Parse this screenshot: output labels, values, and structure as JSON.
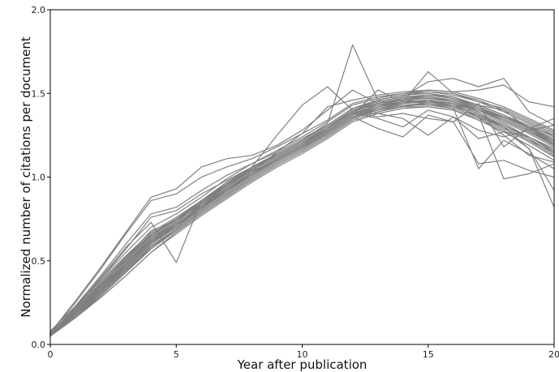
{
  "chart_data": {
    "type": "line",
    "title": "",
    "xlabel": "Year after publication",
    "ylabel": "Normalized number of citations per document",
    "xlim": [
      0,
      20
    ],
    "ylim": [
      0.0,
      2.0
    ],
    "x_ticks": [
      0,
      5,
      10,
      15,
      20
    ],
    "x_tick_labels": [
      "0",
      "5",
      "10",
      "15",
      "20"
    ],
    "y_ticks": [
      0.0,
      0.5,
      1.0,
      1.5,
      2.0
    ],
    "y_tick_labels": [
      "0.0",
      "0.5",
      "1.0",
      "1.5",
      "2.0"
    ],
    "grid": false,
    "legend": "none",
    "line_color": "#808080",
    "x": [
      0,
      1,
      2,
      3,
      4,
      5,
      6,
      7,
      8,
      9,
      10,
      11,
      12,
      13,
      14,
      15,
      16,
      17,
      18,
      19,
      20
    ],
    "series": [
      {
        "values": [
          0.06,
          0.19,
          0.33,
          0.47,
          0.62,
          0.72,
          0.82,
          0.93,
          1.03,
          1.11,
          1.19,
          1.28,
          1.38,
          1.43,
          1.46,
          1.47,
          1.45,
          1.4,
          1.33,
          1.26,
          1.18
        ]
      },
      {
        "values": [
          0.05,
          0.17,
          0.3,
          0.44,
          0.58,
          0.69,
          0.8,
          0.9,
          1.0,
          1.09,
          1.17,
          1.26,
          1.36,
          1.41,
          1.44,
          1.46,
          1.44,
          1.39,
          1.32,
          1.24,
          1.16
        ]
      },
      {
        "values": [
          0.07,
          0.21,
          0.36,
          0.5,
          0.66,
          0.75,
          0.85,
          0.96,
          1.05,
          1.13,
          1.21,
          1.3,
          1.4,
          1.45,
          1.48,
          1.49,
          1.47,
          1.42,
          1.36,
          1.29,
          1.21
        ]
      },
      {
        "values": [
          0.05,
          0.16,
          0.28,
          0.41,
          0.55,
          0.67,
          0.78,
          0.88,
          0.98,
          1.07,
          1.15,
          1.24,
          1.34,
          1.39,
          1.42,
          1.44,
          1.42,
          1.37,
          1.3,
          1.22,
          1.13
        ]
      },
      {
        "values": [
          0.08,
          0.23,
          0.39,
          0.55,
          0.7,
          0.78,
          0.88,
          0.99,
          1.08,
          1.16,
          1.24,
          1.33,
          1.43,
          1.47,
          1.5,
          1.51,
          1.49,
          1.45,
          1.39,
          1.32,
          1.25
        ]
      },
      {
        "values": [
          0.06,
          0.18,
          0.31,
          0.45,
          0.6,
          0.7,
          0.81,
          0.91,
          1.01,
          1.1,
          1.18,
          1.27,
          1.37,
          1.42,
          1.45,
          1.45,
          1.43,
          1.38,
          1.31,
          1.23,
          1.14
        ]
      },
      {
        "values": [
          0.05,
          0.2,
          0.35,
          0.52,
          0.68,
          0.74,
          0.83,
          0.94,
          1.04,
          1.12,
          1.2,
          1.29,
          1.39,
          1.44,
          1.46,
          1.48,
          1.46,
          1.41,
          1.35,
          1.28,
          1.2
        ]
      },
      {
        "values": [
          0.06,
          0.17,
          0.29,
          0.43,
          0.57,
          0.68,
          0.79,
          0.89,
          0.99,
          1.08,
          1.16,
          1.25,
          1.35,
          1.4,
          1.43,
          1.43,
          1.41,
          1.36,
          1.29,
          1.21,
          1.12
        ]
      },
      {
        "values": [
          0.07,
          0.22,
          0.38,
          0.53,
          0.67,
          0.76,
          0.86,
          0.97,
          1.06,
          1.14,
          1.22,
          1.31,
          1.41,
          1.46,
          1.49,
          1.5,
          1.48,
          1.43,
          1.37,
          1.3,
          1.22
        ]
      },
      {
        "values": [
          0.05,
          0.19,
          0.34,
          0.49,
          0.64,
          0.73,
          0.84,
          0.95,
          1.04,
          1.12,
          1.2,
          1.28,
          1.38,
          1.42,
          1.45,
          1.46,
          1.44,
          1.4,
          1.34,
          1.27,
          1.19
        ]
      },
      {
        "values": [
          0.06,
          0.18,
          0.32,
          0.46,
          0.61,
          0.71,
          0.83,
          0.92,
          1.02,
          1.1,
          1.18,
          1.27,
          1.37,
          1.41,
          1.43,
          1.44,
          1.41,
          1.36,
          1.3,
          1.22,
          1.15
        ]
      },
      {
        "values": [
          0.05,
          0.16,
          0.29,
          0.43,
          0.58,
          0.69,
          0.8,
          0.9,
          1.0,
          1.09,
          1.17,
          1.26,
          1.36,
          1.4,
          1.42,
          1.42,
          1.4,
          1.34,
          1.27,
          1.19,
          1.1
        ]
      },
      {
        "values": [
          0.07,
          0.2,
          0.35,
          0.51,
          0.65,
          0.74,
          0.85,
          0.95,
          1.05,
          1.13,
          1.21,
          1.3,
          1.4,
          1.44,
          1.47,
          1.48,
          1.45,
          1.4,
          1.34,
          1.27,
          1.2
        ]
      },
      {
        "values": [
          0.06,
          0.19,
          0.33,
          0.48,
          0.63,
          0.72,
          0.82,
          0.93,
          1.02,
          1.11,
          1.19,
          1.28,
          1.38,
          1.43,
          1.46,
          1.47,
          1.45,
          1.41,
          1.36,
          1.29,
          1.22
        ]
      },
      {
        "values": [
          0.05,
          0.17,
          0.31,
          0.46,
          0.61,
          0.71,
          0.81,
          0.92,
          1.01,
          1.1,
          1.18,
          1.27,
          1.37,
          1.42,
          1.45,
          1.45,
          1.42,
          1.37,
          1.31,
          1.24,
          1.17
        ]
      },
      {
        "values": [
          0.06,
          0.21,
          0.37,
          0.52,
          0.66,
          0.75,
          0.84,
          0.94,
          1.04,
          1.12,
          1.2,
          1.29,
          1.39,
          1.44,
          1.47,
          1.49,
          1.47,
          1.43,
          1.37,
          1.31,
          1.24
        ]
      },
      {
        "values": [
          0.06,
          0.23,
          0.41,
          0.6,
          0.78,
          0.82,
          0.92,
          1.01,
          1.08,
          1.15,
          1.23,
          1.31,
          1.41,
          1.46,
          1.49,
          1.51,
          1.5,
          1.46,
          1.4,
          1.33,
          1.26
        ]
      },
      {
        "values": [
          0.07,
          0.25,
          0.45,
          0.66,
          0.86,
          0.9,
          1.0,
          1.06,
          1.11,
          1.18,
          1.26,
          1.34,
          1.44,
          1.48,
          1.5,
          1.52,
          1.51,
          1.47,
          1.42,
          1.35,
          1.28
        ]
      },
      {
        "values": [
          0.05,
          0.21,
          0.39,
          0.57,
          0.76,
          0.8,
          0.9,
          0.98,
          1.06,
          1.13,
          1.21,
          1.29,
          1.39,
          1.44,
          1.47,
          1.49,
          1.47,
          1.43,
          1.37,
          1.3,
          1.23
        ]
      },
      {
        "values": [
          0.06,
          0.22,
          0.4,
          0.58,
          0.73,
          0.49,
          0.86,
          0.96,
          1.05,
          1.13,
          1.21,
          1.3,
          1.39,
          1.44,
          1.47,
          1.48,
          1.46,
          1.42,
          1.36,
          1.29,
          1.22
        ]
      },
      {
        "values": [
          0.07,
          0.26,
          0.46,
          0.67,
          0.88,
          0.93,
          1.06,
          1.11,
          1.13,
          1.19,
          1.28,
          1.4,
          1.52,
          1.44,
          1.46,
          1.45,
          1.43,
          1.4,
          1.36,
          1.3,
          1.25
        ]
      },
      {
        "values": [
          0.05,
          0.2,
          0.36,
          0.51,
          0.65,
          0.74,
          0.85,
          0.95,
          1.05,
          1.14,
          1.22,
          1.32,
          1.79,
          1.46,
          1.42,
          1.45,
          1.44,
          1.4,
          1.35,
          1.28,
          1.21
        ]
      },
      {
        "values": [
          0.06,
          0.19,
          0.34,
          0.48,
          0.63,
          0.73,
          0.84,
          0.95,
          1.06,
          1.25,
          1.43,
          1.54,
          1.4,
          1.43,
          1.45,
          1.46,
          1.44,
          1.4,
          1.34,
          1.27,
          1.2
        ]
      },
      {
        "values": [
          0.05,
          0.18,
          0.32,
          0.46,
          0.61,
          0.72,
          0.82,
          0.93,
          1.03,
          1.15,
          1.26,
          1.42,
          1.46,
          1.49,
          1.51,
          1.52,
          1.51,
          1.52,
          1.55,
          1.45,
          1.42
        ]
      },
      {
        "values": [
          0.06,
          0.19,
          0.33,
          0.47,
          0.62,
          0.72,
          0.82,
          0.92,
          1.02,
          1.1,
          1.18,
          1.27,
          1.37,
          1.52,
          1.45,
          1.63,
          1.5,
          1.45,
          1.41,
          1.34,
          1.27
        ]
      },
      {
        "values": [
          0.07,
          0.21,
          0.36,
          0.5,
          0.65,
          0.75,
          0.85,
          0.96,
          1.06,
          1.14,
          1.22,
          1.31,
          1.41,
          1.45,
          1.48,
          1.57,
          1.59,
          1.54,
          1.59,
          1.39,
          1.31
        ]
      },
      {
        "values": [
          0.05,
          0.17,
          0.3,
          0.44,
          0.59,
          0.69,
          0.8,
          0.9,
          1.0,
          1.09,
          1.17,
          1.26,
          1.36,
          1.4,
          1.43,
          1.43,
          1.41,
          1.05,
          1.22,
          1.14,
          1.05
        ]
      },
      {
        "values": [
          0.06,
          0.18,
          0.31,
          0.45,
          0.6,
          0.71,
          0.81,
          0.91,
          1.01,
          1.1,
          1.18,
          1.27,
          1.37,
          1.42,
          1.44,
          1.45,
          1.43,
          1.38,
          1.3,
          1.17,
          0.92
        ]
      },
      {
        "values": [
          0.05,
          0.16,
          0.28,
          0.41,
          0.55,
          0.66,
          0.77,
          0.87,
          0.97,
          1.06,
          1.14,
          1.23,
          1.33,
          1.38,
          1.41,
          1.42,
          1.4,
          1.35,
          1.28,
          1.17,
          0.82
        ]
      },
      {
        "values": [
          0.06,
          0.2,
          0.35,
          0.49,
          0.64,
          0.73,
          0.84,
          0.94,
          1.04,
          1.12,
          1.2,
          1.29,
          1.39,
          1.36,
          1.38,
          1.35,
          1.33,
          1.08,
          1.1,
          1.04,
          1.0
        ]
      },
      {
        "values": [
          0.07,
          0.2,
          0.34,
          0.49,
          0.63,
          0.72,
          0.83,
          0.93,
          1.03,
          1.11,
          1.19,
          1.28,
          1.38,
          1.35,
          1.3,
          1.4,
          1.36,
          1.28,
          1.24,
          1.28,
          1.31
        ]
      },
      {
        "values": [
          0.05,
          0.18,
          0.32,
          0.47,
          0.62,
          0.71,
          0.82,
          0.92,
          1.02,
          1.11,
          1.19,
          1.28,
          1.38,
          1.43,
          1.44,
          1.46,
          1.42,
          1.37,
          0.99,
          1.02,
          1.08
        ]
      },
      {
        "values": [
          0.06,
          0.19,
          0.32,
          0.46,
          0.61,
          0.7,
          0.81,
          0.92,
          1.01,
          1.1,
          1.18,
          1.26,
          1.36,
          1.29,
          1.24,
          1.37,
          1.33,
          1.44,
          1.18,
          1.3,
          1.19
        ]
      },
      {
        "values": [
          0.06,
          0.19,
          0.33,
          0.48,
          0.62,
          0.72,
          0.82,
          0.93,
          1.03,
          1.11,
          1.19,
          1.28,
          1.38,
          1.38,
          1.35,
          1.25,
          1.36,
          1.23,
          1.27,
          1.24,
          1.15
        ]
      },
      {
        "values": [
          0.05,
          0.17,
          0.3,
          0.44,
          0.58,
          0.68,
          0.79,
          0.89,
          0.99,
          1.08,
          1.16,
          1.25,
          1.35,
          1.41,
          1.44,
          1.45,
          1.43,
          1.36,
          1.25,
          1.13,
          1.09
        ]
      },
      {
        "values": [
          0.07,
          0.21,
          0.36,
          0.51,
          0.66,
          0.75,
          0.86,
          0.96,
          1.05,
          1.14,
          1.22,
          1.31,
          1.41,
          1.46,
          1.49,
          1.5,
          1.47,
          1.43,
          1.4,
          1.29,
          1.35
        ]
      }
    ]
  }
}
